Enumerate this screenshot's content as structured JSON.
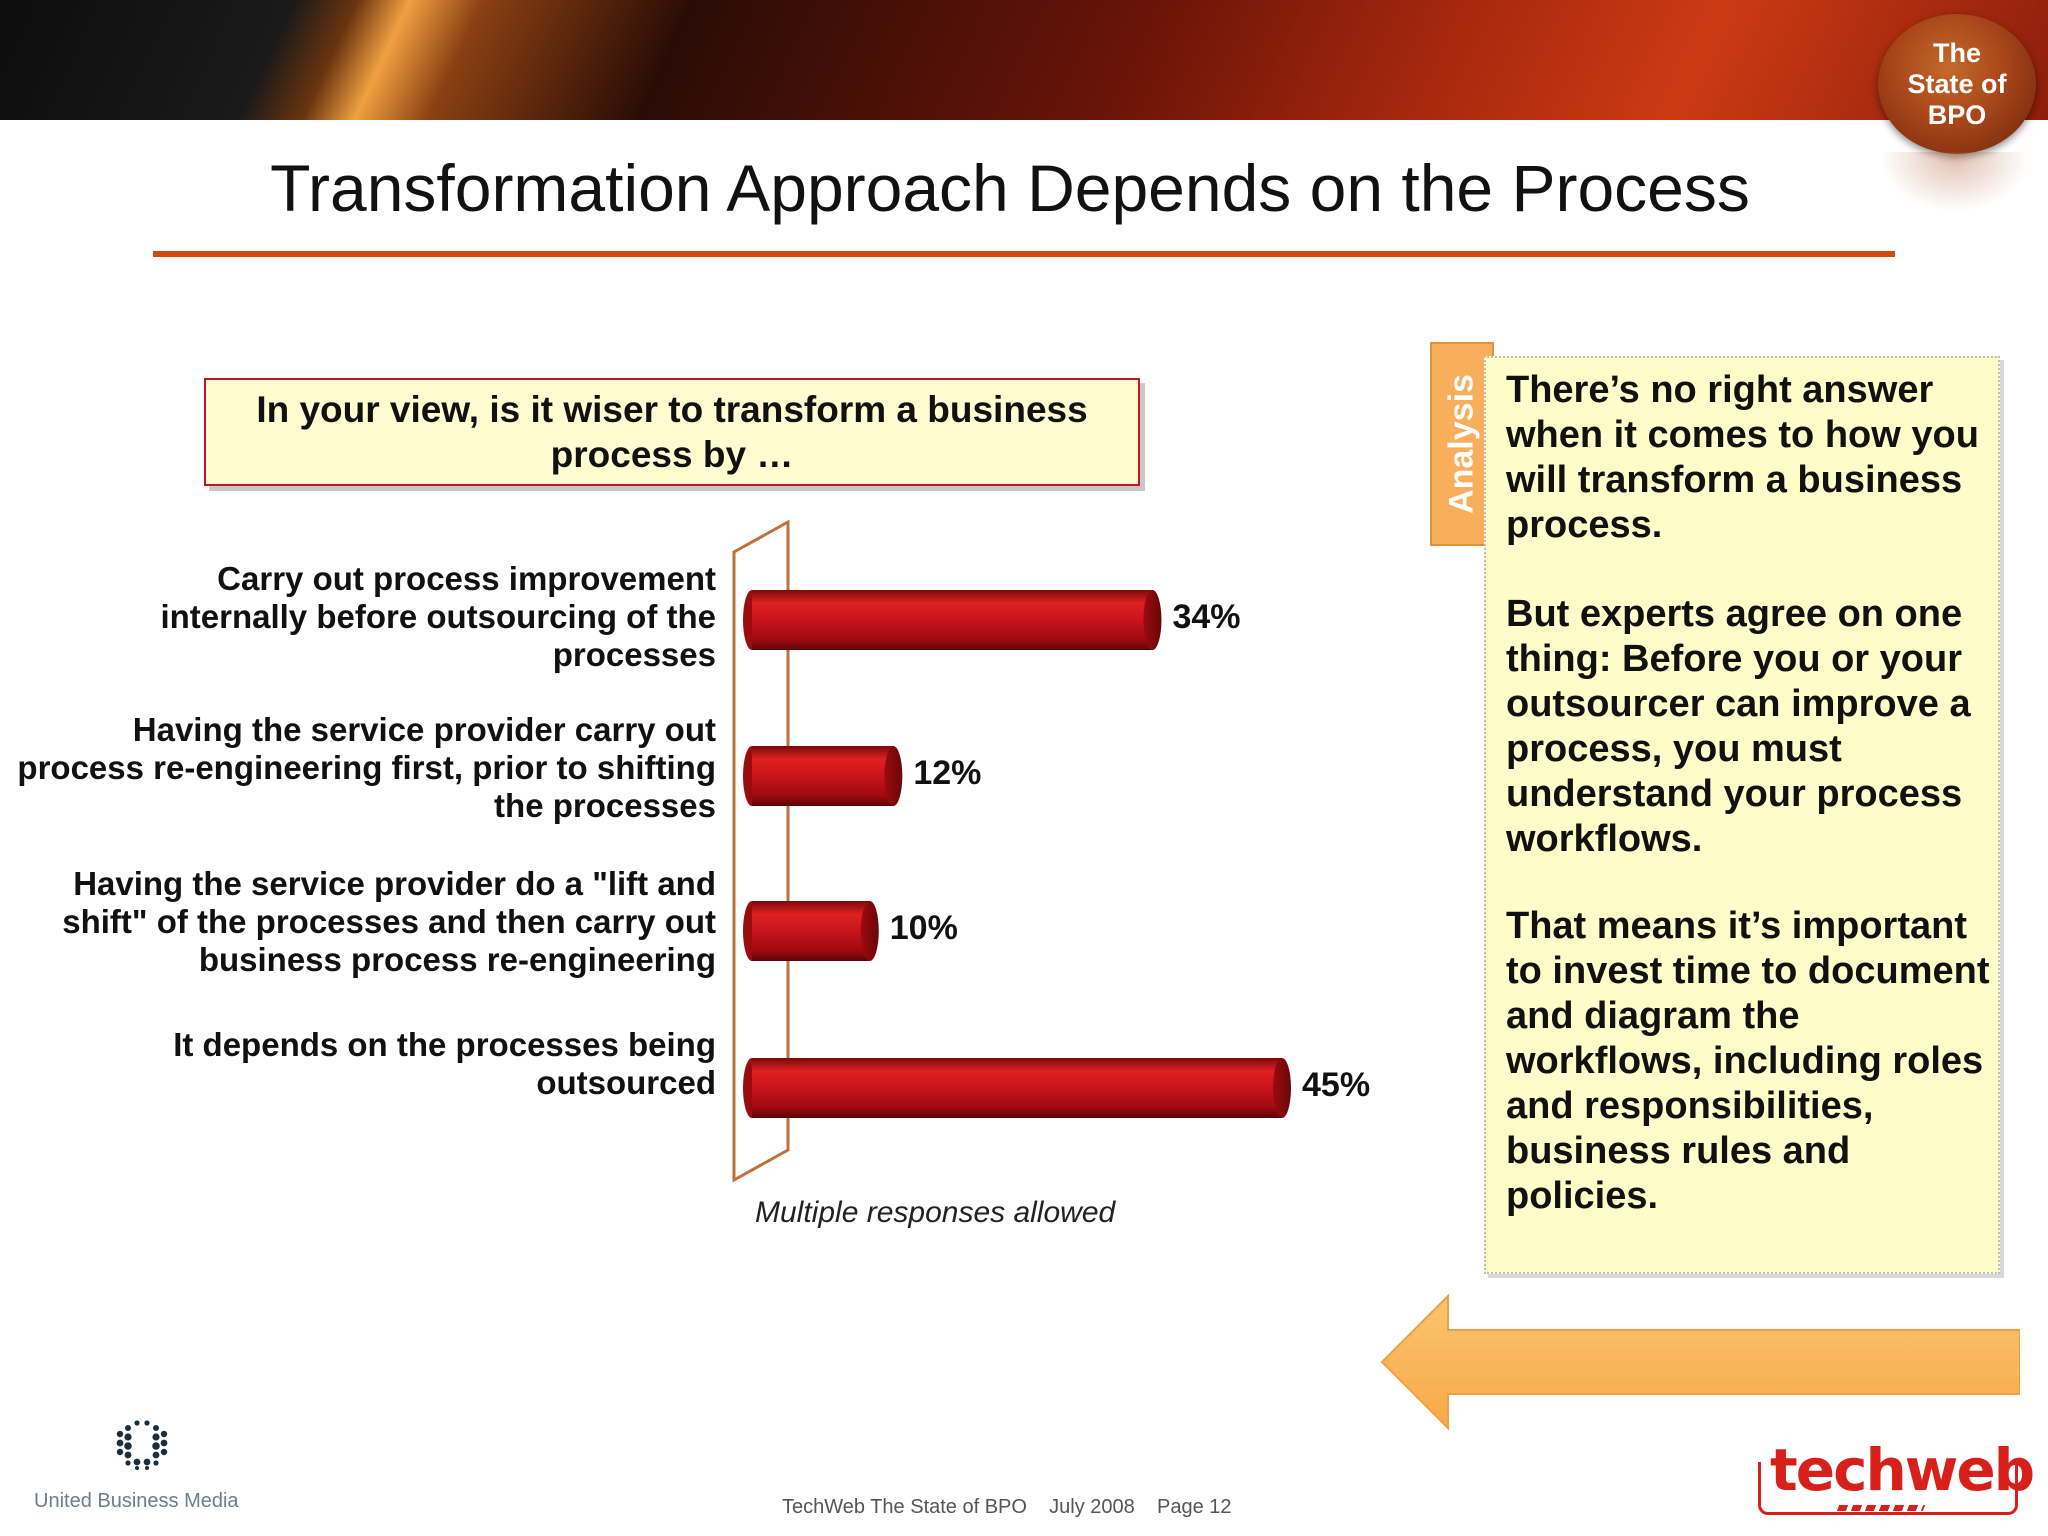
{
  "header": {
    "badge_text": "The\nState of\nBPO",
    "title": "Transformation Approach Depends on the Process"
  },
  "question": "In your view, is it wiser to transform a business process by …",
  "chart_data": {
    "type": "bar",
    "orientation": "horizontal",
    "categories": [
      "Carry out process improvement internally before outsourcing of the processes",
      "Having the service provider carry out process re-engineering first, prior to shifting the processes",
      "Having the service provider do a \"lift and shift\" of the processes and then carry out business process re-engineering",
      "It depends on the processes being outsourced"
    ],
    "category_lines": [
      [
        "Carry out process improvement",
        "internally before outsourcing of the",
        "processes"
      ],
      [
        "Having the service provider carry out",
        "process re-engineering first, prior to shifting",
        "the processes"
      ],
      [
        "Having the service provider do a \"lift and",
        "shift\" of the processes and then carry out",
        "business process re-engineering"
      ],
      [
        "It depends on the processes being",
        "outsourced"
      ]
    ],
    "values": [
      34,
      12,
      10,
      45
    ],
    "value_labels": [
      "34%",
      "12%",
      "10%",
      "45%"
    ],
    "unit": "%",
    "xlim": [
      0,
      45
    ],
    "grid": false,
    "legend": "none",
    "bar_color": "#c8141c",
    "note": "Multiple responses allowed"
  },
  "analysis": {
    "tab_label": "Analysis",
    "paragraphs": [
      "There’s no right answer when it comes to how you will transform a business process.",
      "But experts agree on one thing: Before you or your outsourcer can improve a process, you must understand your process workflows.",
      "That means it’s important to invest time to document and diagram the workflows, including roles and responsibilities, business rules and policies."
    ]
  },
  "footer": {
    "company": "United Business Media",
    "text": "TechWeb The State of BPO    July 2008    Page 12",
    "logo": "techweb"
  },
  "colors": {
    "accent_rule": "#d24810",
    "analysis_tab": "#f8ae5a",
    "analysis_box": "#fefcc8",
    "arrow": "#f8b860"
  }
}
